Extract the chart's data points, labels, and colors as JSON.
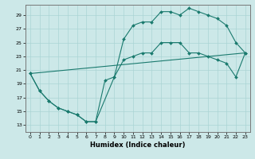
{
  "xlabel": "Humidex (Indice chaleur)",
  "xlim": [
    -0.5,
    23.5
  ],
  "ylim": [
    12.0,
    30.5
  ],
  "xticks": [
    0,
    1,
    2,
    3,
    4,
    5,
    6,
    7,
    8,
    9,
    10,
    11,
    12,
    13,
    14,
    15,
    16,
    17,
    18,
    19,
    20,
    21,
    22,
    23
  ],
  "yticks": [
    13,
    15,
    17,
    19,
    21,
    23,
    25,
    27,
    29
  ],
  "bg_color": "#cce8e8",
  "grid_color": "#aad4d4",
  "line_color": "#1a7a6e",
  "line1_x": [
    0,
    1,
    2,
    3,
    4,
    5,
    6,
    7,
    8,
    9,
    10,
    11,
    12,
    13,
    14,
    15,
    16,
    17,
    18,
    19,
    20,
    21,
    22,
    23
  ],
  "line1_y": [
    20.5,
    18.0,
    16.5,
    15.5,
    15.0,
    14.5,
    13.5,
    13.5,
    19.5,
    20.0,
    25.5,
    27.5,
    28.0,
    28.0,
    29.5,
    29.5,
    29.0,
    30.0,
    29.5,
    29.0,
    28.5,
    27.5,
    25.0,
    23.5
  ],
  "line2_x": [
    0,
    1,
    2,
    3,
    4,
    5,
    6,
    7,
    9,
    10,
    11,
    12,
    13,
    14,
    15,
    16,
    17,
    18,
    19,
    20,
    21,
    22,
    23
  ],
  "line2_y": [
    20.5,
    18.0,
    16.5,
    15.5,
    15.0,
    14.5,
    13.5,
    13.5,
    20.0,
    22.5,
    23.0,
    23.5,
    23.5,
    25.0,
    25.0,
    25.0,
    23.5,
    23.5,
    23.0,
    22.5,
    22.0,
    20.0,
    23.5
  ],
  "line3_x": [
    0,
    23
  ],
  "line3_y": [
    20.5,
    23.5
  ],
  "marker": "D",
  "markersize": 2.0,
  "linewidth": 0.8,
  "tick_fontsize": 4.5,
  "xlabel_fontsize": 6.0
}
